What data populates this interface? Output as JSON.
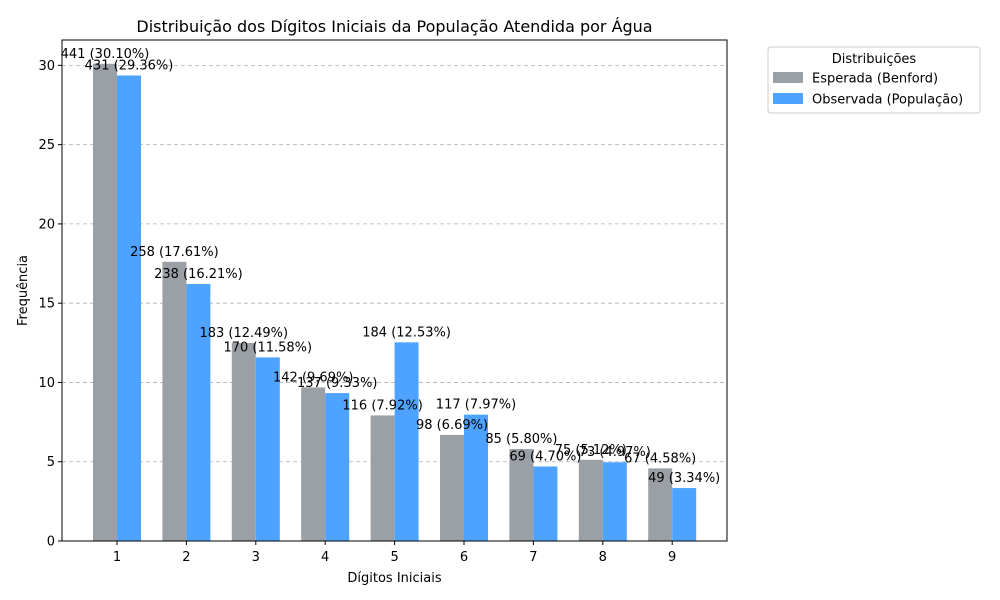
{
  "chart_data": {
    "type": "bar",
    "title": "Distribuição dos Dígitos Iniciais da População Atendida por Água",
    "xlabel": "Dígitos Iniciais",
    "ylabel": "Frequência",
    "categories": [
      "1",
      "2",
      "3",
      "4",
      "5",
      "6",
      "7",
      "8",
      "9"
    ],
    "ylim": [
      0,
      31.6
    ],
    "yticks": [
      0,
      5,
      10,
      15,
      20,
      25,
      30
    ],
    "grid": "horizontal dashed",
    "legend": {
      "title": "Distribuições",
      "placement": "outside-top-right"
    },
    "series": [
      {
        "name": "Esperada (Benford)",
        "color": "#9aa0a6",
        "values": [
          30.1,
          17.61,
          12.49,
          9.69,
          7.92,
          6.69,
          5.8,
          5.12,
          4.58
        ],
        "labels": [
          "441 (30.10%)",
          "258 (17.61%)",
          "183 (12.49%)",
          "142 (9.69%)",
          "116 (7.92%)",
          "98 (6.69%)",
          "85 (5.80%)",
          "75 (5.12%)",
          "67 (4.58%)"
        ]
      },
      {
        "name": "Observada (População)",
        "color": "#4da3ff",
        "values": [
          29.36,
          16.21,
          11.58,
          9.33,
          12.53,
          7.97,
          4.7,
          4.97,
          3.34
        ],
        "labels": [
          "431 (29.36%)",
          "238 (16.21%)",
          "170 (11.58%)",
          "137 (9.33%)",
          "184 (12.53%)",
          "117 (7.97%)",
          "69 (4.70%)",
          "73 (4.97%)",
          "49 (3.34%)"
        ]
      }
    ]
  }
}
